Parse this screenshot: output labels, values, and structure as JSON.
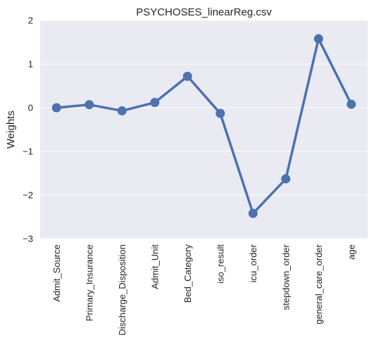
{
  "chart_data": {
    "type": "line",
    "title": "PSYCHOSES_linearReg.csv",
    "xlabel": "",
    "ylabel": "Weights",
    "categories": [
      "Admit_Source",
      "Primary_Insurance",
      "Discharge_Disposition",
      "Admit_Unit",
      "Bed_Category",
      "iso_result",
      "icu_order",
      "stepdown_order",
      "general_care_order",
      "age"
    ],
    "series": [
      {
        "values": [
          0.0,
          0.07,
          -0.07,
          0.12,
          0.72,
          -0.13,
          -2.42,
          -1.63,
          1.58,
          0.08
        ]
      }
    ],
    "ylim": [
      -3,
      2
    ],
    "yticks": [
      2,
      1,
      0,
      -1,
      -2,
      -3
    ],
    "ytick_labels": [
      "2",
      "1",
      "0",
      "−1",
      "−2",
      "−3"
    ],
    "grid": true,
    "colors": {
      "line": "#4c72b0",
      "background": "#eaeaf2",
      "grid": "#ffffff"
    }
  }
}
